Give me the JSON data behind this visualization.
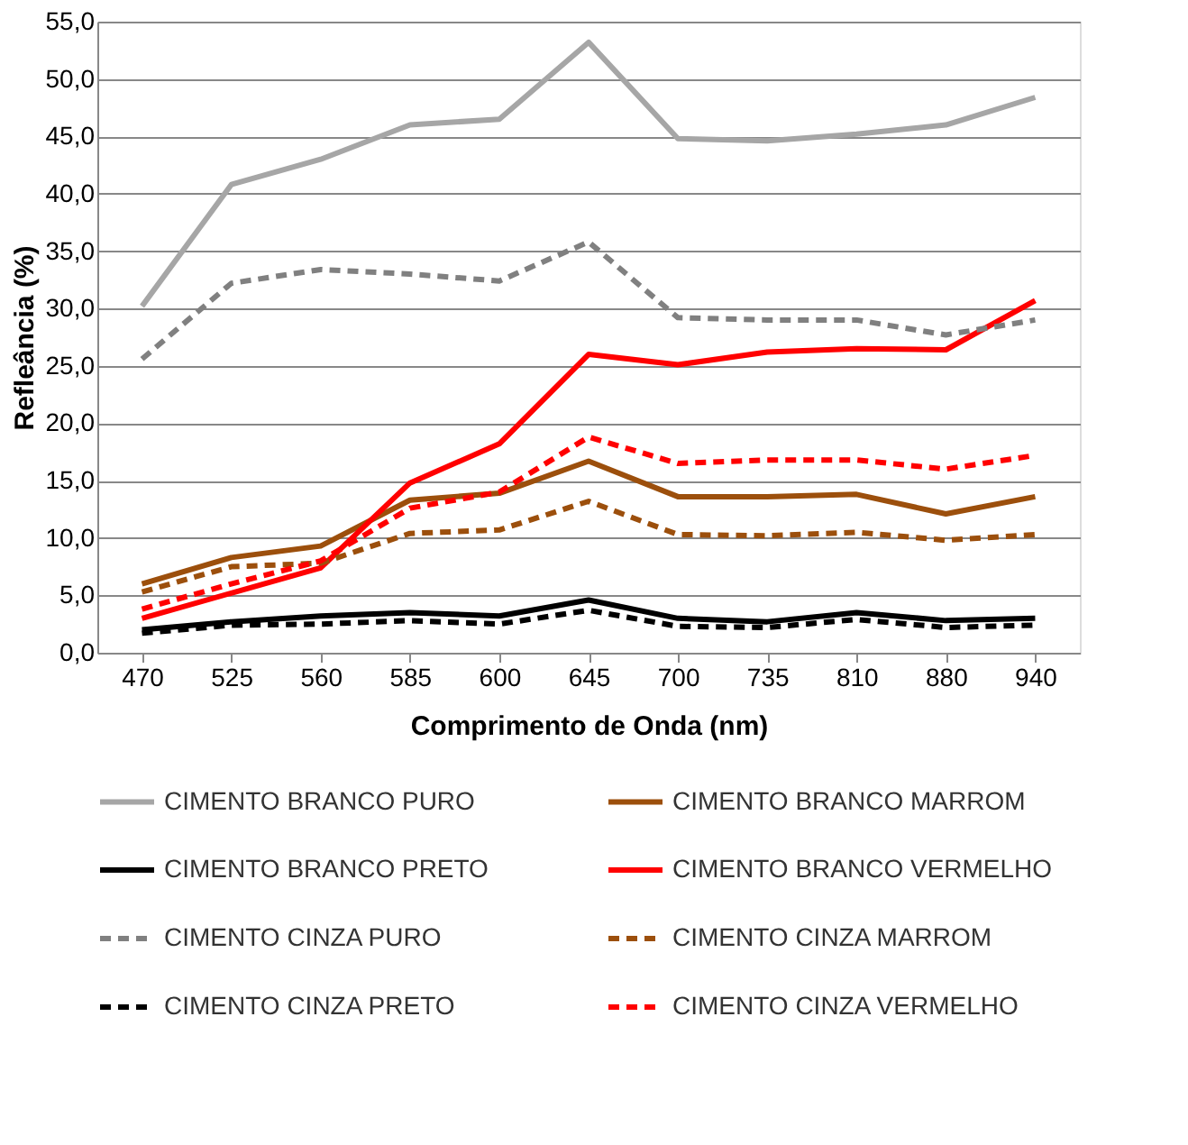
{
  "chart_data": {
    "type": "line",
    "xlabel": "Comprimento de Onda (nm)",
    "ylabel": "Refleância (%)",
    "categories": [
      "470",
      "525",
      "560",
      "585",
      "600",
      "645",
      "700",
      "735",
      "810",
      "880",
      "940"
    ],
    "ylim": [
      0,
      55
    ],
    "yticks": [
      {
        "value": 0,
        "label": "0,0"
      },
      {
        "value": 5,
        "label": "5,0"
      },
      {
        "value": 10,
        "label": "10,0"
      },
      {
        "value": 15,
        "label": "15,0"
      },
      {
        "value": 20,
        "label": "20,0"
      },
      {
        "value": 25,
        "label": "25,0"
      },
      {
        "value": 30,
        "label": "30,0"
      },
      {
        "value": 35,
        "label": "35,0"
      },
      {
        "value": 40,
        "label": "40,0"
      },
      {
        "value": 45,
        "label": "45,0"
      },
      {
        "value": 50,
        "label": "50,0"
      },
      {
        "value": 55,
        "label": "55,0"
      }
    ],
    "grid": "y",
    "legend": "bottom",
    "marker": "none",
    "series": [
      {
        "name": "CIMENTO BRANCO PURO",
        "color": "#a6a6a6",
        "line_style": "solid",
        "values": [
          30.2,
          40.8,
          43.0,
          46.0,
          46.5,
          53.2,
          44.8,
          44.6,
          45.2,
          46.0,
          48.4
        ]
      },
      {
        "name": "CIMENTO BRANCO MARROM",
        "color": "#9c4f0c",
        "line_style": "solid",
        "values": [
          6.0,
          8.3,
          9.3,
          13.3,
          13.9,
          16.7,
          13.6,
          13.6,
          13.8,
          12.1,
          13.6
        ]
      },
      {
        "name": "CIMENTO BRANCO PRETO",
        "color": "#000000",
        "line_style": "solid",
        "values": [
          2.0,
          2.7,
          3.2,
          3.5,
          3.2,
          4.6,
          3.0,
          2.7,
          3.5,
          2.8,
          3.0
        ]
      },
      {
        "name": "CIMENTO BRANCO VERMELHO",
        "color": "#ff0000",
        "line_style": "solid",
        "values": [
          3.0,
          5.2,
          7.4,
          14.8,
          18.2,
          26.0,
          25.1,
          26.2,
          26.5,
          26.4,
          30.7
        ]
      },
      {
        "name": "CIMENTO CINZA PURO",
        "color": "#808080",
        "line_style": "dashed",
        "values": [
          25.6,
          32.2,
          33.4,
          33.0,
          32.4,
          35.8,
          29.2,
          29.0,
          29.0,
          27.7,
          29.0
        ]
      },
      {
        "name": "CIMENTO CINZA MARROM",
        "color": "#9c4f0c",
        "line_style": "dashed",
        "values": [
          5.3,
          7.5,
          7.8,
          10.4,
          10.7,
          13.2,
          10.3,
          10.2,
          10.5,
          9.8,
          10.3
        ]
      },
      {
        "name": "CIMENTO CINZA PRETO",
        "color": "#000000",
        "line_style": "dashed",
        "values": [
          1.7,
          2.4,
          2.5,
          2.8,
          2.5,
          3.7,
          2.3,
          2.2,
          2.9,
          2.2,
          2.4
        ]
      },
      {
        "name": "CIMENTO CINZA VERMELHO",
        "color": "#ff0000",
        "line_style": "dashed",
        "values": [
          3.8,
          6.0,
          8.0,
          12.6,
          14.0,
          18.8,
          16.5,
          16.8,
          16.8,
          16.0,
          17.2
        ]
      }
    ]
  }
}
